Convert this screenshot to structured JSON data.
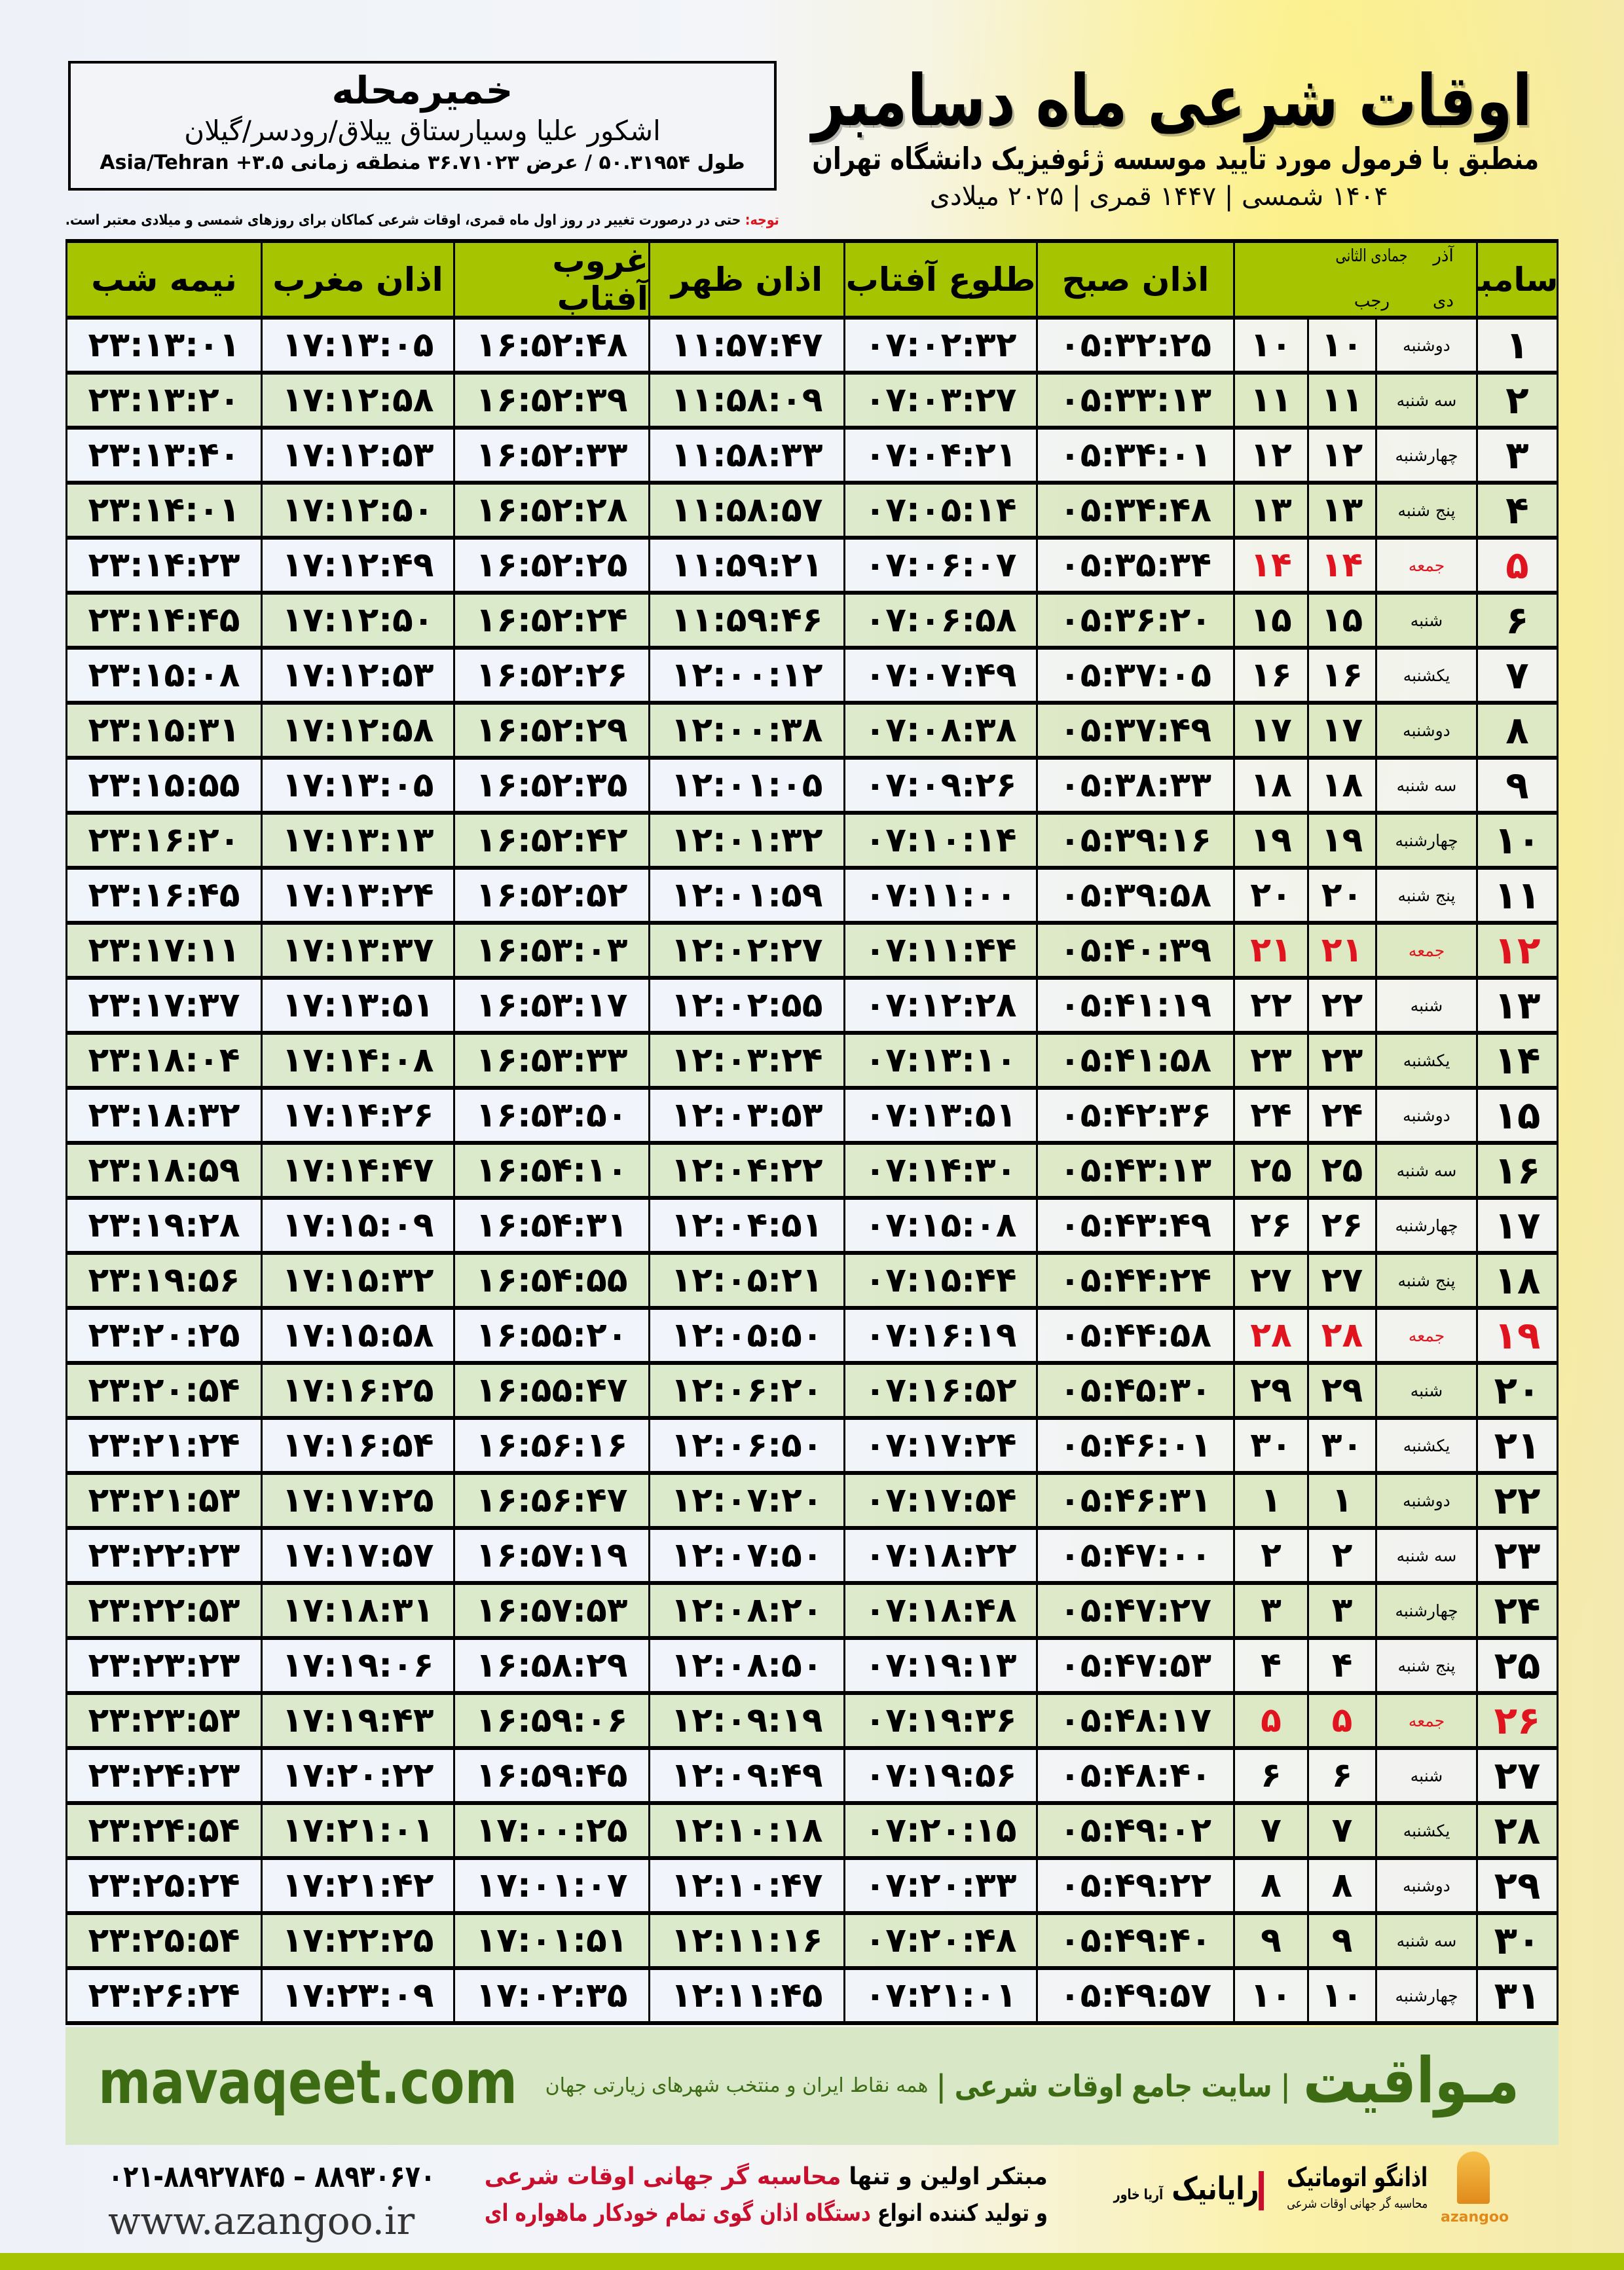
{
  "location": {
    "city": "خمیرمحله",
    "region": "اشکور علیا وسیارستاق ییلاق/رودسر/گیلان",
    "coords": "طول ۵۰.۳۱۹۵۴ / عرض ۳۶.۷۱۰۲۳ منطقه زمانی ۳.۵+ Asia/Tehran"
  },
  "header": {
    "title": "اوقات شرعی ماه دسامبر",
    "subtitle": "منطبق با فرمول مورد تایید موسسه ژئوفیزیک دانشگاه تهران",
    "dates": "۱۴۰۴ شمسی | ۱۴۴۷ قمری | ۲۰۲۵ میلادی"
  },
  "note": {
    "label": "توجه:",
    "text": " حتی در درصورت تغییر در روز اول ماه قمری، اوقات شرعی کماکان برای روزهای شمسی و میلادی معتبر است."
  },
  "colors": {
    "header_green": "#a6c400",
    "friday_red": "#e0141e",
    "brand_green": "#3d6b14"
  },
  "table": {
    "headers": {
      "month": "دسامبر",
      "persian_month_top": "آذر",
      "persian_month_bottom": "دی",
      "hijri_month_top": "جمادی الثانی",
      "hijri_month_bottom": "رجب",
      "fajr": "اذان صبح",
      "sunrise": "طلوع آفتاب",
      "dhuhr": "اذان ظهر",
      "sunset": "غروب آفتاب",
      "maghrib": "اذان مغرب",
      "midnight": "نیمه شب"
    },
    "row_fields": [
      "day",
      "weekday",
      "persian_day",
      "hijri_day",
      "fajr",
      "sunrise",
      "dhuhr",
      "sunset",
      "maghrib",
      "midnight"
    ],
    "friday_weekday": "جمعه",
    "rows": [
      [
        "۱",
        "دوشنبه",
        "۱۰",
        "۱۰",
        "۰۵:۳۲:۲۵",
        "۰۷:۰۲:۳۲",
        "۱۱:۵۷:۴۷",
        "۱۶:۵۲:۴۸",
        "۱۷:۱۳:۰۵",
        "۲۳:۱۳:۰۱"
      ],
      [
        "۲",
        "سه شنبه",
        "۱۱",
        "۱۱",
        "۰۵:۳۳:۱۳",
        "۰۷:۰۳:۲۷",
        "۱۱:۵۸:۰۹",
        "۱۶:۵۲:۳۹",
        "۱۷:۱۲:۵۸",
        "۲۳:۱۳:۲۰"
      ],
      [
        "۳",
        "چهارشنبه",
        "۱۲",
        "۱۲",
        "۰۵:۳۴:۰۱",
        "۰۷:۰۴:۲۱",
        "۱۱:۵۸:۳۳",
        "۱۶:۵۲:۳۳",
        "۱۷:۱۲:۵۳",
        "۲۳:۱۳:۴۰"
      ],
      [
        "۴",
        "پنج شنبه",
        "۱۳",
        "۱۳",
        "۰۵:۳۴:۴۸",
        "۰۷:۰۵:۱۴",
        "۱۱:۵۸:۵۷",
        "۱۶:۵۲:۲۸",
        "۱۷:۱۲:۵۰",
        "۲۳:۱۴:۰۱"
      ],
      [
        "۵",
        "جمعه",
        "۱۴",
        "۱۴",
        "۰۵:۳۵:۳۴",
        "۰۷:۰۶:۰۷",
        "۱۱:۵۹:۲۱",
        "۱۶:۵۲:۲۵",
        "۱۷:۱۲:۴۹",
        "۲۳:۱۴:۲۳"
      ],
      [
        "۶",
        "شنبه",
        "۱۵",
        "۱۵",
        "۰۵:۳۶:۲۰",
        "۰۷:۰۶:۵۸",
        "۱۱:۵۹:۴۶",
        "۱۶:۵۲:۲۴",
        "۱۷:۱۲:۵۰",
        "۲۳:۱۴:۴۵"
      ],
      [
        "۷",
        "یکشنبه",
        "۱۶",
        "۱۶",
        "۰۵:۳۷:۰۵",
        "۰۷:۰۷:۴۹",
        "۱۲:۰۰:۱۲",
        "۱۶:۵۲:۲۶",
        "۱۷:۱۲:۵۳",
        "۲۳:۱۵:۰۸"
      ],
      [
        "۸",
        "دوشنبه",
        "۱۷",
        "۱۷",
        "۰۵:۳۷:۴۹",
        "۰۷:۰۸:۳۸",
        "۱۲:۰۰:۳۸",
        "۱۶:۵۲:۲۹",
        "۱۷:۱۲:۵۸",
        "۲۳:۱۵:۳۱"
      ],
      [
        "۹",
        "سه شنبه",
        "۱۸",
        "۱۸",
        "۰۵:۳۸:۳۳",
        "۰۷:۰۹:۲۶",
        "۱۲:۰۱:۰۵",
        "۱۶:۵۲:۳۵",
        "۱۷:۱۳:۰۵",
        "۲۳:۱۵:۵۵"
      ],
      [
        "۱۰",
        "چهارشنبه",
        "۱۹",
        "۱۹",
        "۰۵:۳۹:۱۶",
        "۰۷:۱۰:۱۴",
        "۱۲:۰۱:۳۲",
        "۱۶:۵۲:۴۲",
        "۱۷:۱۳:۱۳",
        "۲۳:۱۶:۲۰"
      ],
      [
        "۱۱",
        "پنج شنبه",
        "۲۰",
        "۲۰",
        "۰۵:۳۹:۵۸",
        "۰۷:۱۱:۰۰",
        "۱۲:۰۱:۵۹",
        "۱۶:۵۲:۵۲",
        "۱۷:۱۳:۲۴",
        "۲۳:۱۶:۴۵"
      ],
      [
        "۱۲",
        "جمعه",
        "۲۱",
        "۲۱",
        "۰۵:۴۰:۳۹",
        "۰۷:۱۱:۴۴",
        "۱۲:۰۲:۲۷",
        "۱۶:۵۳:۰۳",
        "۱۷:۱۳:۳۷",
        "۲۳:۱۷:۱۱"
      ],
      [
        "۱۳",
        "شنبه",
        "۲۲",
        "۲۲",
        "۰۵:۴۱:۱۹",
        "۰۷:۱۲:۲۸",
        "۱۲:۰۲:۵۵",
        "۱۶:۵۳:۱۷",
        "۱۷:۱۳:۵۱",
        "۲۳:۱۷:۳۷"
      ],
      [
        "۱۴",
        "یکشنبه",
        "۲۳",
        "۲۳",
        "۰۵:۴۱:۵۸",
        "۰۷:۱۳:۱۰",
        "۱۲:۰۳:۲۴",
        "۱۶:۵۳:۳۳",
        "۱۷:۱۴:۰۸",
        "۲۳:۱۸:۰۴"
      ],
      [
        "۱۵",
        "دوشنبه",
        "۲۴",
        "۲۴",
        "۰۵:۴۲:۳۶",
        "۰۷:۱۳:۵۱",
        "۱۲:۰۳:۵۳",
        "۱۶:۵۳:۵۰",
        "۱۷:۱۴:۲۶",
        "۲۳:۱۸:۳۲"
      ],
      [
        "۱۶",
        "سه شنبه",
        "۲۵",
        "۲۵",
        "۰۵:۴۳:۱۳",
        "۰۷:۱۴:۳۰",
        "۱۲:۰۴:۲۲",
        "۱۶:۵۴:۱۰",
        "۱۷:۱۴:۴۷",
        "۲۳:۱۸:۵۹"
      ],
      [
        "۱۷",
        "چهارشنبه",
        "۲۶",
        "۲۶",
        "۰۵:۴۳:۴۹",
        "۰۷:۱۵:۰۸",
        "۱۲:۰۴:۵۱",
        "۱۶:۵۴:۳۱",
        "۱۷:۱۵:۰۹",
        "۲۳:۱۹:۲۸"
      ],
      [
        "۱۸",
        "پنج شنبه",
        "۲۷",
        "۲۷",
        "۰۵:۴۴:۲۴",
        "۰۷:۱۵:۴۴",
        "۱۲:۰۵:۲۱",
        "۱۶:۵۴:۵۵",
        "۱۷:۱۵:۳۲",
        "۲۳:۱۹:۵۶"
      ],
      [
        "۱۹",
        "جمعه",
        "۲۸",
        "۲۸",
        "۰۵:۴۴:۵۸",
        "۰۷:۱۶:۱۹",
        "۱۲:۰۵:۵۰",
        "۱۶:۵۵:۲۰",
        "۱۷:۱۵:۵۸",
        "۲۳:۲۰:۲۵"
      ],
      [
        "۲۰",
        "شنبه",
        "۲۹",
        "۲۹",
        "۰۵:۴۵:۳۰",
        "۰۷:۱۶:۵۲",
        "۱۲:۰۶:۲۰",
        "۱۶:۵۵:۴۷",
        "۱۷:۱۶:۲۵",
        "۲۳:۲۰:۵۴"
      ],
      [
        "۲۱",
        "یکشنبه",
        "۳۰",
        "۳۰",
        "۰۵:۴۶:۰۱",
        "۰۷:۱۷:۲۴",
        "۱۲:۰۶:۵۰",
        "۱۶:۵۶:۱۶",
        "۱۷:۱۶:۵۴",
        "۲۳:۲۱:۲۴"
      ],
      [
        "۲۲",
        "دوشنبه",
        "۱",
        "۱",
        "۰۵:۴۶:۳۱",
        "۰۷:۱۷:۵۴",
        "۱۲:۰۷:۲۰",
        "۱۶:۵۶:۴۷",
        "۱۷:۱۷:۲۵",
        "۲۳:۲۱:۵۳"
      ],
      [
        "۲۳",
        "سه شنبه",
        "۲",
        "۲",
        "۰۵:۴۷:۰۰",
        "۰۷:۱۸:۲۲",
        "۱۲:۰۷:۵۰",
        "۱۶:۵۷:۱۹",
        "۱۷:۱۷:۵۷",
        "۲۳:۲۲:۲۳"
      ],
      [
        "۲۴",
        "چهارشنبه",
        "۳",
        "۳",
        "۰۵:۴۷:۲۷",
        "۰۷:۱۸:۴۸",
        "۱۲:۰۸:۲۰",
        "۱۶:۵۷:۵۳",
        "۱۷:۱۸:۳۱",
        "۲۳:۲۲:۵۳"
      ],
      [
        "۲۵",
        "پنج شنبه",
        "۴",
        "۴",
        "۰۵:۴۷:۵۳",
        "۰۷:۱۹:۱۳",
        "۱۲:۰۸:۵۰",
        "۱۶:۵۸:۲۹",
        "۱۷:۱۹:۰۶",
        "۲۳:۲۳:۲۳"
      ],
      [
        "۲۶",
        "جمعه",
        "۵",
        "۵",
        "۰۵:۴۸:۱۷",
        "۰۷:۱۹:۳۶",
        "۱۲:۰۹:۱۹",
        "۱۶:۵۹:۰۶",
        "۱۷:۱۹:۴۳",
        "۲۳:۲۳:۵۳"
      ],
      [
        "۲۷",
        "شنبه",
        "۶",
        "۶",
        "۰۵:۴۸:۴۰",
        "۰۷:۱۹:۵۶",
        "۱۲:۰۹:۴۹",
        "۱۶:۵۹:۴۵",
        "۱۷:۲۰:۲۲",
        "۲۳:۲۴:۲۳"
      ],
      [
        "۲۸",
        "یکشنبه",
        "۷",
        "۷",
        "۰۵:۴۹:۰۲",
        "۰۷:۲۰:۱۵",
        "۱۲:۱۰:۱۸",
        "۱۷:۰۰:۲۵",
        "۱۷:۲۱:۰۱",
        "۲۳:۲۴:۵۴"
      ],
      [
        "۲۹",
        "دوشنبه",
        "۸",
        "۸",
        "۰۵:۴۹:۲۲",
        "۰۷:۲۰:۳۳",
        "۱۲:۱۰:۴۷",
        "۱۷:۰۱:۰۷",
        "۱۷:۲۱:۴۲",
        "۲۳:۲۵:۲۴"
      ],
      [
        "۳۰",
        "سه شنبه",
        "۹",
        "۹",
        "۰۵:۴۹:۴۰",
        "۰۷:۲۰:۴۸",
        "۱۲:۱۱:۱۶",
        "۱۷:۰۱:۵۱",
        "۱۷:۲۲:۲۵",
        "۲۳:۲۵:۵۴"
      ],
      [
        "۳۱",
        "چهارشنبه",
        "۱۰",
        "۱۰",
        "۰۵:۴۹:۵۷",
        "۰۷:۲۱:۰۱",
        "۱۲:۱۱:۴۵",
        "۱۷:۰۲:۳۵",
        "۱۷:۲۳:۰۹",
        "۲۳:۲۶:۲۴"
      ]
    ]
  },
  "footer": {
    "site": "mavaqeet.com",
    "brand": "مـواقیت",
    "slogan": "| سایت جامع اوقات شرعی |",
    "slogan_sub": "همه نقاط ایران و منتخب شهرهای زیارتی جهان",
    "phone": "۰۲۱-۸۸۹۲۷۸۴۵ – ۸۸۹۳۰۶۷۰",
    "web": "www.azangoo.ir",
    "ad_line1_a": "مبتکر اولین و تنها ",
    "ad_line1_b": "محاسبه گر جهانی اوقات شرعی",
    "ad_line2_a": "و تولید کننده انواع ",
    "ad_line2_b": "دستگاه اذان گوی تمام خودکار ماهواره ای",
    "logo_rayanik": "رایانیک",
    "logo_rayanik_sub": "آریا خاور",
    "logo_azangoo": "اذانگو اتوماتیک",
    "logo_azangoo_sub": "محاسبه گر جهانی اوقات شرعی",
    "logo_azangoo_latin": "azangoo"
  }
}
